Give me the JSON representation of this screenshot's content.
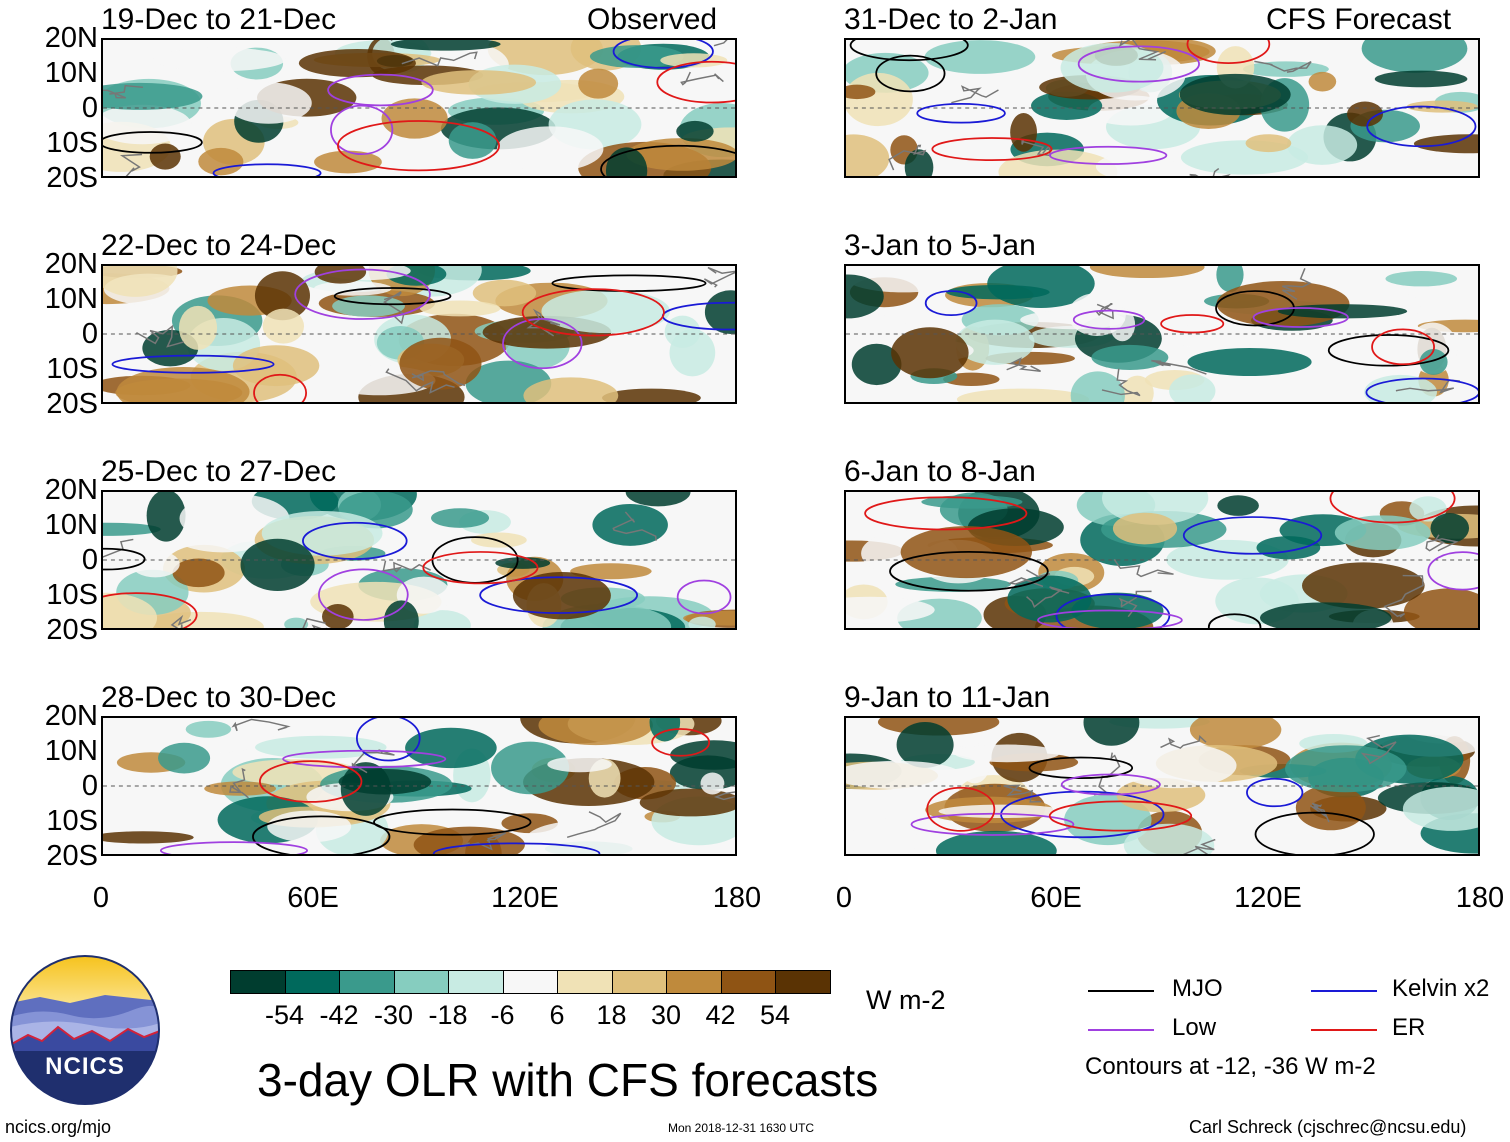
{
  "chart_data": {
    "type": "heatmap",
    "title": "3-day OLR with CFS forecasts",
    "variable": "OLR anomaly",
    "units": "W m-2",
    "colorbar": {
      "ticks": [
        "-54",
        "-42",
        "-30",
        "-18",
        "-6",
        "6",
        "18",
        "30",
        "42",
        "54"
      ],
      "colors": [
        "#003d2f",
        "#00695c",
        "#3a9a8c",
        "#86cdbf",
        "#c8ebe3",
        "#f7f7f7",
        "#f0e2b6",
        "#dfc07c",
        "#bf8a3c",
        "#8f5414",
        "#5a3304"
      ]
    },
    "x_axis": {
      "ticks": [
        "0",
        "60E",
        "120E",
        "180"
      ],
      "range": [
        0,
        180
      ]
    },
    "y_axis": {
      "ticks": [
        "20N",
        "10N",
        "0",
        "10S",
        "20S"
      ],
      "range": [
        -20,
        20
      ]
    },
    "columns": [
      {
        "header": "Observed",
        "label_side": "left"
      },
      {
        "header": "CFS Forecast",
        "label_side": "right"
      }
    ],
    "panels": [
      {
        "period": "19-Dec to 21-Dec",
        "source": "Observed"
      },
      {
        "period": "22-Dec to 24-Dec",
        "source": "Observed"
      },
      {
        "period": "25-Dec to 27-Dec",
        "source": "Observed"
      },
      {
        "period": "28-Dec to 30-Dec",
        "source": "Observed"
      },
      {
        "period": "31-Dec to 2-Jan",
        "source": "CFS Forecast"
      },
      {
        "period": "3-Jan to 5-Jan",
        "source": "CFS Forecast"
      },
      {
        "period": "6-Jan to 8-Jan",
        "source": "CFS Forecast"
      },
      {
        "period": "9-Jan to 11-Jan",
        "source": "CFS Forecast"
      }
    ],
    "contour_legend": [
      {
        "name": "MJO",
        "color": "#000000"
      },
      {
        "name": "Kelvin x2",
        "color": "#1a1ad6"
      },
      {
        "name": "Low",
        "color": "#a040e0"
      },
      {
        "name": "ER",
        "color": "#e01818"
      }
    ],
    "contour_note": "Contours at -12, -36 W m-2"
  },
  "footer": {
    "logo_text": "NCICS",
    "website": "ncics.org/mjo",
    "timestamp": "Mon 2018-12-31 1630 UTC",
    "credit": "Carl Schreck (cjschrec@ncsu.edu)"
  }
}
